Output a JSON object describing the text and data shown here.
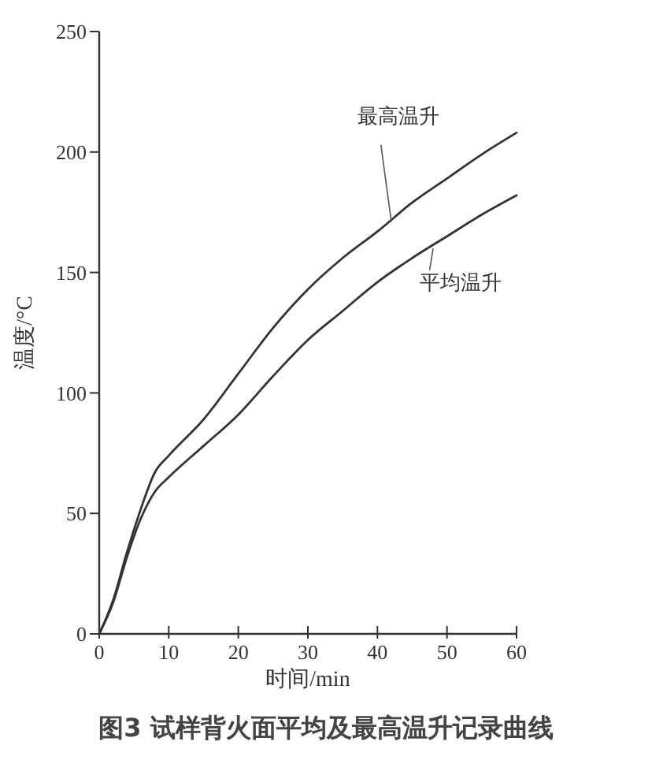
{
  "chart_data": {
    "type": "line",
    "title": "图3  试样背火面平均及最高温升记录曲线",
    "xlabel": "时间/min",
    "ylabel": "温度/°C",
    "x": [
      0,
      2,
      4,
      6,
      8,
      10,
      15,
      20,
      25,
      30,
      35,
      40,
      45,
      50,
      55,
      60
    ],
    "xlim": [
      0,
      60
    ],
    "xticks": [
      0,
      10,
      20,
      30,
      40,
      50,
      60
    ],
    "ylim": [
      0,
      250
    ],
    "yticks": [
      0,
      50,
      100,
      150,
      200,
      250
    ],
    "grid": false,
    "marker": "none",
    "line_style": "solid",
    "series": [
      {
        "name": "最高温升",
        "color": "#333333",
        "values": [
          0,
          14,
          34,
          52,
          67,
          74,
          89,
          108,
          127,
          143,
          156,
          167,
          179,
          189,
          199,
          208
        ]
      },
      {
        "name": "平均温升",
        "color": "#333333",
        "values": [
          0,
          13,
          32,
          48,
          59,
          65,
          78,
          91,
          107,
          122,
          134,
          146,
          156,
          165,
          174,
          182
        ]
      }
    ]
  }
}
